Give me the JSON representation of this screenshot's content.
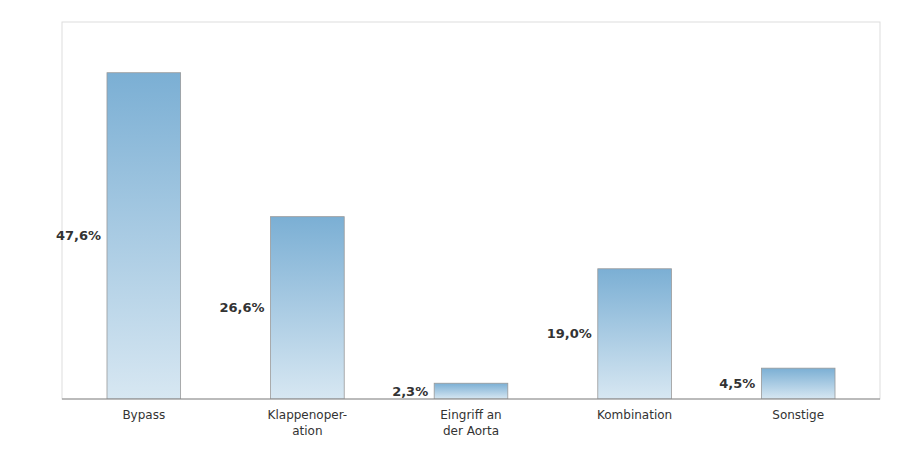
{
  "chart_data": {
    "type": "bar",
    "categories": [
      "Bypass",
      "Klappenoper-\nation",
      "Eingriff an\nder Aorta",
      "Kombination",
      "Sonstige"
    ],
    "values": [
      47.6,
      26.6,
      2.3,
      19.0,
      4.5
    ],
    "value_labels": [
      "47,6%",
      "26,6%",
      "2,3%",
      "19,0%",
      "4,5%"
    ],
    "data_labels": true,
    "color": "#7BAFD4",
    "ylim": [
      0,
      55
    ],
    "tick_labels": "x",
    "grid": false
  }
}
